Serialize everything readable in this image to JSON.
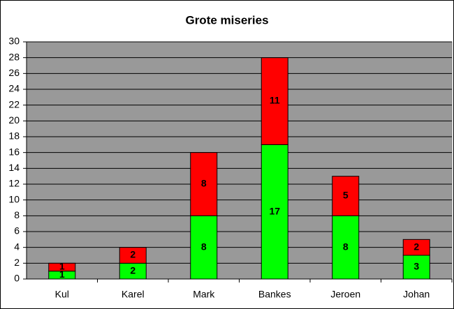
{
  "chart_data": {
    "type": "stacked-bar",
    "title": "Grote miseries",
    "categories": [
      "Kul",
      "Karel",
      "Mark",
      "Bankes",
      "Jeroen",
      "Johan"
    ],
    "series": [
      {
        "color": "#00ff00",
        "values": [
          1,
          2,
          8,
          17,
          8,
          3
        ]
      },
      {
        "color": "#ff0000",
        "values": [
          1,
          2,
          8,
          11,
          5,
          2
        ]
      }
    ],
    "ylim": [
      0,
      30
    ],
    "yticks": [
      0,
      2,
      4,
      6,
      8,
      10,
      12,
      14,
      16,
      18,
      20,
      22,
      24,
      26,
      28,
      30
    ],
    "grid": true,
    "plot_background": "#999999"
  }
}
